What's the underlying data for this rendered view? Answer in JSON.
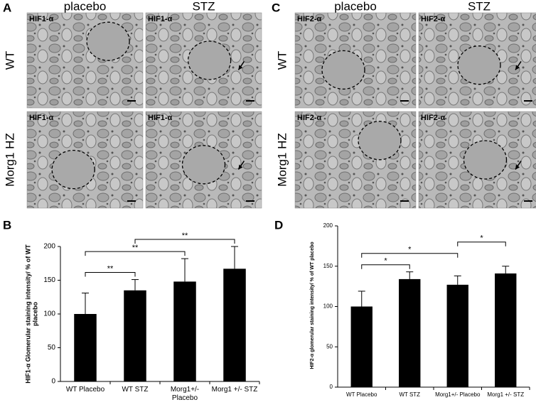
{
  "panels": {
    "A": {
      "label": "A",
      "columns": [
        "placebo",
        "STZ"
      ],
      "rows": [
        "WT",
        "Morg1 HZ"
      ],
      "stain": "HIF1-α"
    },
    "C": {
      "label": "C",
      "columns": [
        "placebo",
        "STZ"
      ],
      "rows": [
        "WT",
        "Morg1 HZ"
      ],
      "stain": "HIF2-α"
    }
  },
  "chart_data": [
    {
      "type": "bar",
      "panel_label": "B",
      "ylabel": "HIF1-α Glomerular staining intensity/ % of WT placebo",
      "categories": [
        "WT Placebo",
        "WT STZ",
        "Morg1+/- Placebo",
        "Morg1 +/- STZ"
      ],
      "values": [
        100,
        135,
        148,
        167
      ],
      "errors": [
        31,
        16,
        34,
        33
      ],
      "color": "#000000",
      "ylim": [
        0,
        200
      ],
      "yticks": [
        0,
        50,
        100,
        150,
        200
      ],
      "brackets": [
        {
          "from": 0,
          "to": 1,
          "label": "**"
        },
        {
          "from": 0,
          "to": 2,
          "label": "**"
        },
        {
          "from": 1,
          "to": 3,
          "label": "**"
        }
      ]
    },
    {
      "type": "bar",
      "panel_label": "D",
      "ylabel": "HIF2-α glomerular staining intensity/ % of WT placebo",
      "categories": [
        "WT Placebo",
        "WT STZ",
        "Morg1+/- Placebo",
        "Morg1 +/- STZ"
      ],
      "values": [
        100,
        134,
        127,
        141
      ],
      "errors": [
        19,
        9,
        11,
        9
      ],
      "color": "#000000",
      "ylim": [
        0,
        200
      ],
      "yticks": [
        0,
        50,
        100,
        150,
        200
      ],
      "brackets": [
        {
          "from": 0,
          "to": 1,
          "label": "*"
        },
        {
          "from": 0,
          "to": 2,
          "label": "*"
        },
        {
          "from": 2,
          "to": 3,
          "label": "*"
        }
      ]
    }
  ]
}
